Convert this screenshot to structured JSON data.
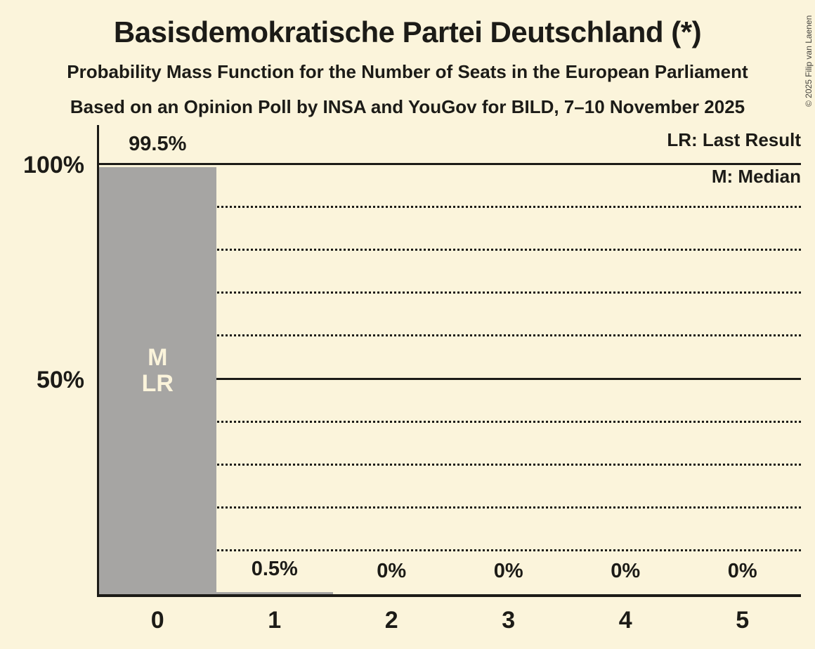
{
  "header": {
    "title": "Basisdemokratische Partei Deutschland (*)",
    "subtitle_line1": "Probability Mass Function for the Number of Seats in the European Parliament",
    "subtitle_line2": "Based on an Opinion Poll by INSA and YouGov for BILD, 7–10 November 2025"
  },
  "copyright": "© 2025 Filip van Laenen",
  "legend": {
    "last_result": "LR: Last Result",
    "median": "M: Median"
  },
  "chart_data": {
    "type": "bar",
    "title": "Basisdemokratische Partei Deutschland (*)",
    "categories": [
      "0",
      "1",
      "2",
      "3",
      "4",
      "5"
    ],
    "values": [
      99.5,
      0.5,
      0,
      0,
      0,
      0
    ],
    "bar_labels": [
      "99.5%",
      "0.5%",
      "0%",
      "0%",
      "0%",
      "0%"
    ],
    "ylim": [
      0,
      100
    ],
    "y_ticks": [
      {
        "label": "100%",
        "value": 100
      },
      {
        "label": "50%",
        "value": 50
      }
    ],
    "gridlines": [
      {
        "pct": 10,
        "style": "dotted"
      },
      {
        "pct": 20,
        "style": "dotted"
      },
      {
        "pct": 30,
        "style": "dotted"
      },
      {
        "pct": 40,
        "style": "dotted"
      },
      {
        "pct": 50,
        "style": "solid"
      },
      {
        "pct": 60,
        "style": "dotted"
      },
      {
        "pct": 70,
        "style": "dotted"
      },
      {
        "pct": 80,
        "style": "dotted"
      },
      {
        "pct": 90,
        "style": "dotted"
      },
      {
        "pct": 100,
        "style": "solid"
      }
    ],
    "annotations": [
      {
        "column": 0,
        "lines": [
          "M",
          "LR"
        ]
      }
    ],
    "legend_position": "top-right",
    "grid": true,
    "colors": {
      "background": "#FBF4DB",
      "bar": "#A6A5A3",
      "text": "#1C1B17",
      "bar_annotation_text": "#FBF4DB"
    }
  }
}
